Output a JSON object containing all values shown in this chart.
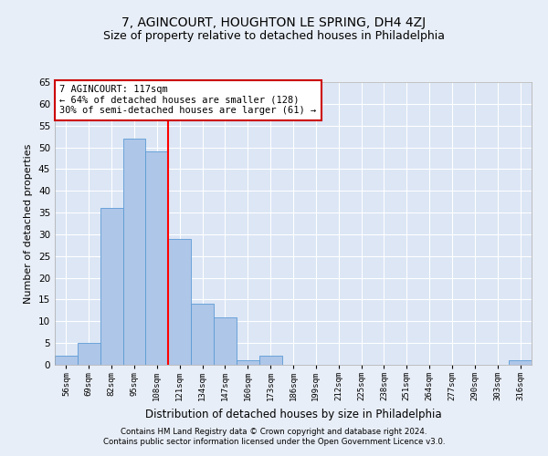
{
  "title": "7, AGINCOURT, HOUGHTON LE SPRING, DH4 4ZJ",
  "subtitle": "Size of property relative to detached houses in Philadelphia",
  "xlabel": "Distribution of detached houses by size in Philadelphia",
  "ylabel": "Number of detached properties",
  "bin_labels": [
    "56sqm",
    "69sqm",
    "82sqm",
    "95sqm",
    "108sqm",
    "121sqm",
    "134sqm",
    "147sqm",
    "160sqm",
    "173sqm",
    "186sqm",
    "199sqm",
    "212sqm",
    "225sqm",
    "238sqm",
    "251sqm",
    "264sqm",
    "277sqm",
    "290sqm",
    "303sqm",
    "316sqm"
  ],
  "bar_heights": [
    2,
    5,
    36,
    52,
    49,
    29,
    14,
    11,
    1,
    2,
    0,
    0,
    0,
    0,
    0,
    0,
    0,
    0,
    0,
    0,
    1
  ],
  "bar_color": "#aec6e8",
  "bar_edge_color": "#5b9bd5",
  "red_line_bin_index": 5,
  "annotation_text": "7 AGINCOURT: 117sqm\n← 64% of detached houses are smaller (128)\n30% of semi-detached houses are larger (61) →",
  "annotation_box_color": "#ffffff",
  "annotation_box_edge": "#cc0000",
  "ylim": [
    0,
    65
  ],
  "yticks": [
    0,
    5,
    10,
    15,
    20,
    25,
    30,
    35,
    40,
    45,
    50,
    55,
    60,
    65
  ],
  "footer1": "Contains HM Land Registry data © Crown copyright and database right 2024.",
  "footer2": "Contains public sector information licensed under the Open Government Licence v3.0.",
  "background_color": "#e8eef7",
  "plot_bg_color": "#dce6f5",
  "grid_color": "#ffffff",
  "title_fontsize": 10,
  "subtitle_fontsize": 9
}
